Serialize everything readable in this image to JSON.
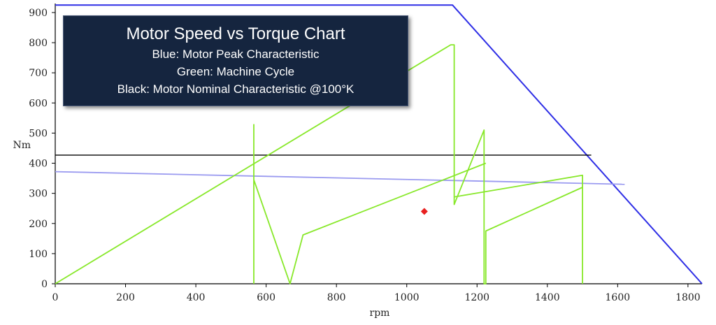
{
  "chart_data": {
    "type": "line",
    "title": "Motor Speed vs Torque Chart",
    "subtitle_lines": [
      "Blue: Motor Peak Characteristic",
      "Green: Machine Cycle",
      "Black: Motor Nominal Characteristic @100°K"
    ],
    "xlabel": "rpm",
    "ylabel": "Nm",
    "xlim": [
      0,
      1840
    ],
    "ylim": [
      0,
      930
    ],
    "xticks": [
      0,
      200,
      400,
      600,
      800,
      1000,
      1200,
      1400,
      1600,
      1800
    ],
    "yticks": [
      0,
      100,
      200,
      300,
      400,
      500,
      600,
      700,
      800,
      900
    ],
    "grid": false,
    "series": [
      {
        "color": "#2f2fe6",
        "x": [
          0,
          1130,
          1840
        ],
        "y": [
          925,
          925,
          0
        ]
      },
      {
        "color": "#000000",
        "x": [
          0,
          1525
        ],
        "y": [
          427,
          427
        ]
      },
      {
        "color": "#9a9af0",
        "x": [
          0,
          1620
        ],
        "y": [
          372,
          330
        ]
      },
      {
        "color": "#88e82a",
        "x": [
          0,
          1125,
          1125,
          1135,
          1135,
          1220,
          1220,
          1225,
          1225,
          1500,
          1500
        ],
        "y": [
          0,
          793,
          793,
          793,
          263,
          510,
          0,
          0,
          175,
          320,
          0
        ]
      },
      {
        "color": "#88e82a",
        "x": [
          565,
          565,
          565,
          668,
          705,
          1225
        ],
        "y": [
          0,
          528,
          345,
          0,
          162,
          400
        ]
      },
      {
        "color": "#88e82a",
        "x": [
          1135,
          1500,
          1500
        ],
        "y": [
          288,
          360,
          320
        ]
      }
    ],
    "points": [
      {
        "color": "#e82020",
        "x": 1050,
        "y": 240
      }
    ]
  }
}
